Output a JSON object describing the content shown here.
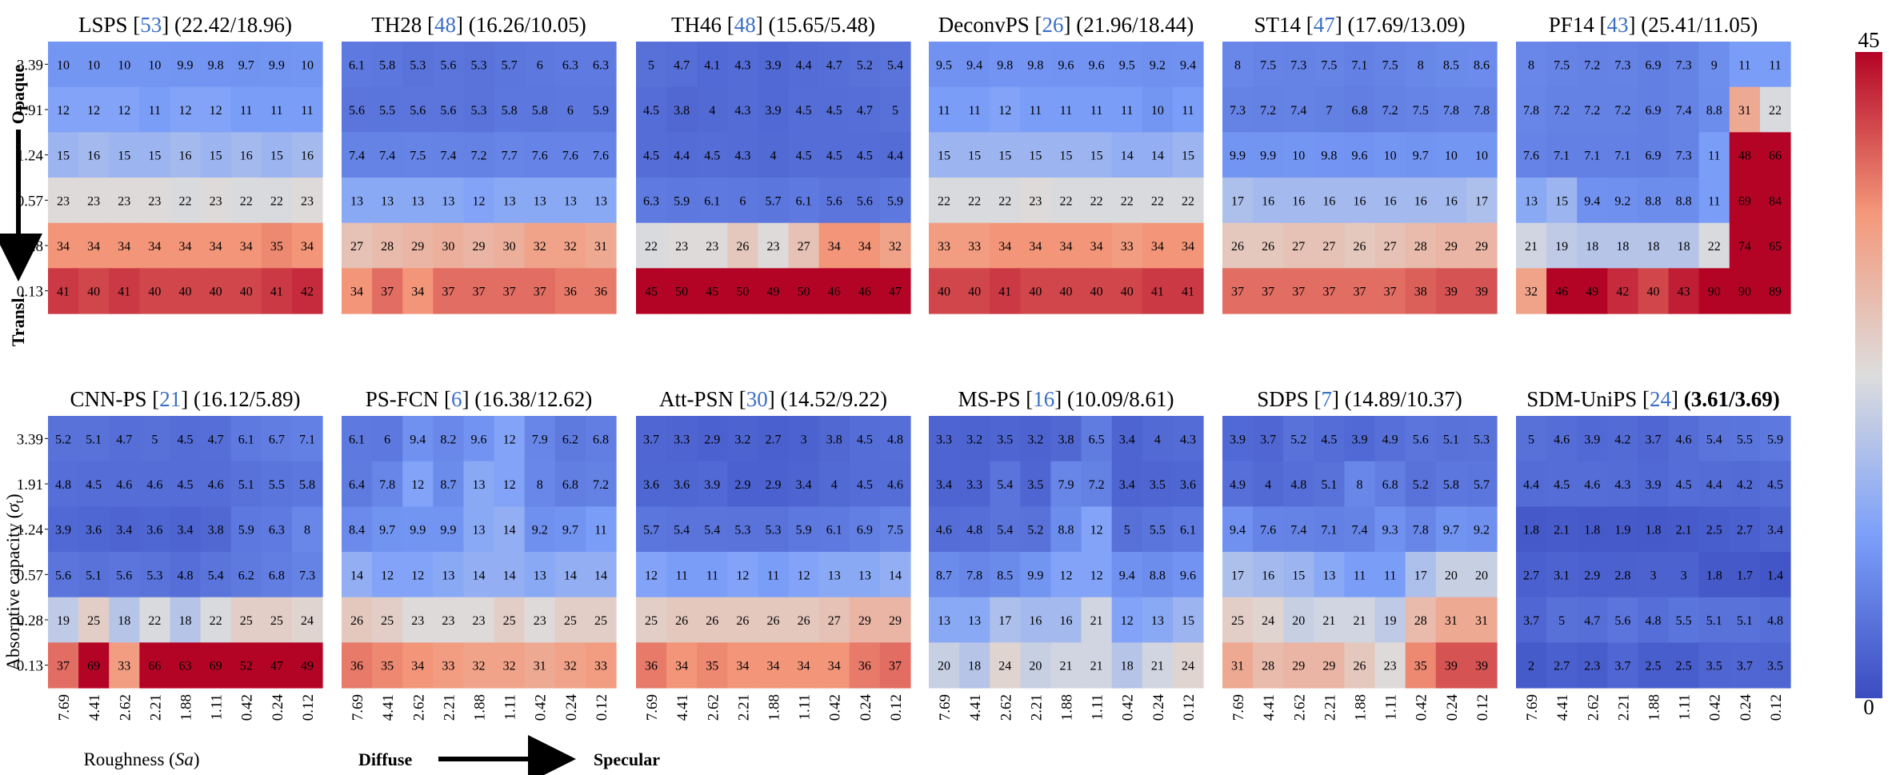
{
  "chart_data": {
    "type": "heatmap",
    "colorbar": {
      "min": 0,
      "max": 45,
      "tick_labels": [
        "45",
        "0"
      ],
      "colormap": "coolwarm"
    },
    "y_ticks": [
      "3.39",
      "1.91",
      "1.24",
      "0.57",
      "0.28",
      "0.13"
    ],
    "x_ticks": [
      "7.69",
      "4.41",
      "2.62",
      "2.21",
      "1.88",
      "1.11",
      "0.42",
      "0.24",
      "0.12"
    ],
    "ylabel_parts": [
      "Absorptive capacity (",
      "σ",
      "t",
      ")"
    ],
    "xlabel_parts": [
      "Roughness (",
      "Sa",
      ")"
    ],
    "side_labels": {
      "top": "Opaque",
      "bottom": "Transl."
    },
    "bottom_labels": {
      "left": "Diffuse",
      "right": "Specular"
    },
    "panels": [
      {
        "name": "LSPS",
        "ref": "53",
        "scores": "(22.42/18.96)",
        "values": [
          [
            10,
            10,
            10,
            10,
            9.9,
            9.8,
            9.7,
            9.9,
            10
          ],
          [
            12,
            12,
            12,
            11,
            12,
            12,
            11,
            11,
            11
          ],
          [
            15,
            16,
            15,
            15,
            16,
            15,
            16,
            15,
            16
          ],
          [
            23,
            23,
            23,
            23,
            22,
            23,
            22,
            22,
            23
          ],
          [
            34,
            34,
            34,
            34,
            34,
            34,
            34,
            35,
            34
          ],
          [
            41,
            40,
            41,
            40,
            40,
            40,
            40,
            41,
            42
          ]
        ]
      },
      {
        "name": "TH28",
        "ref": "48",
        "scores": "(16.26/10.05)",
        "values": [
          [
            6.1,
            5.8,
            5.3,
            5.6,
            5.3,
            5.7,
            6,
            6.3,
            6.3
          ],
          [
            5.6,
            5.5,
            5.6,
            5.6,
            5.3,
            5.8,
            5.8,
            6,
            5.9
          ],
          [
            7.4,
            7.4,
            7.5,
            7.4,
            7.2,
            7.7,
            7.6,
            7.6,
            7.6
          ],
          [
            13,
            13,
            13,
            13,
            12,
            13,
            13,
            13,
            13
          ],
          [
            27,
            28,
            29,
            30,
            29,
            30,
            32,
            32,
            31
          ],
          [
            34,
            37,
            34,
            37,
            37,
            37,
            37,
            36,
            36
          ]
        ]
      },
      {
        "name": "TH46",
        "ref": "48",
        "scores": "(15.65/5.48)",
        "values": [
          [
            5,
            4.7,
            4.1,
            4.3,
            3.9,
            4.4,
            4.7,
            5.2,
            5.4
          ],
          [
            4.5,
            3.8,
            4,
            4.3,
            3.9,
            4.5,
            4.5,
            4.7,
            5
          ],
          [
            4.5,
            4.4,
            4.5,
            4.3,
            4,
            4.5,
            4.5,
            4.5,
            4.4
          ],
          [
            6.3,
            5.9,
            6.1,
            6,
            5.7,
            6.1,
            5.6,
            5.6,
            5.9
          ],
          [
            22,
            23,
            23,
            26,
            23,
            27,
            34,
            34,
            32
          ],
          [
            45,
            50,
            45,
            50,
            49,
            50,
            46,
            46,
            47
          ]
        ]
      },
      {
        "name": "DeconvPS",
        "ref": "26",
        "scores": "(21.96/18.44)",
        "values": [
          [
            9.5,
            9.4,
            9.8,
            9.8,
            9.6,
            9.6,
            9.5,
            9.2,
            9.4
          ],
          [
            11,
            11,
            12,
            11,
            11,
            11,
            11,
            10,
            11
          ],
          [
            15,
            15,
            15,
            15,
            15,
            15,
            14,
            14,
            15
          ],
          [
            22,
            22,
            22,
            23,
            22,
            22,
            22,
            22,
            22
          ],
          [
            33,
            33,
            34,
            34,
            34,
            34,
            33,
            34,
            34
          ],
          [
            40,
            40,
            41,
            40,
            40,
            40,
            40,
            41,
            41
          ]
        ]
      },
      {
        "name": "ST14",
        "ref": "47",
        "scores": "(17.69/13.09)",
        "values": [
          [
            8,
            7.5,
            7.3,
            7.5,
            7.1,
            7.5,
            8,
            8.5,
            8.6
          ],
          [
            7.3,
            7.2,
            7.4,
            7,
            6.8,
            7.2,
            7.5,
            7.8,
            7.8
          ],
          [
            9.9,
            9.9,
            10,
            9.8,
            9.6,
            10,
            9.7,
            10,
            10
          ],
          [
            17,
            16,
            16,
            16,
            16,
            16,
            16,
            16,
            17
          ],
          [
            26,
            26,
            27,
            27,
            26,
            27,
            28,
            29,
            29
          ],
          [
            37,
            37,
            37,
            37,
            37,
            37,
            38,
            39,
            39
          ]
        ]
      },
      {
        "name": "PF14",
        "ref": "43",
        "scores": "(25.41/11.05)",
        "values": [
          [
            8,
            7.5,
            7.2,
            7.3,
            6.9,
            7.3,
            9,
            11,
            11
          ],
          [
            7.8,
            7.2,
            7.2,
            7.2,
            6.9,
            7.4,
            8.8,
            31,
            22
          ],
          [
            7.6,
            7.1,
            7.1,
            7.1,
            6.9,
            7.3,
            11,
            48,
            66
          ],
          [
            13,
            15,
            9.4,
            9.2,
            8.8,
            8.8,
            11,
            69,
            84
          ],
          [
            21,
            19,
            18,
            18,
            18,
            18,
            22,
            74,
            65
          ],
          [
            32,
            46,
            49,
            42,
            40,
            43,
            90,
            90,
            89
          ]
        ]
      },
      {
        "name": "CNN-PS",
        "ref": "21",
        "scores": "(16.12/5.89)",
        "values": [
          [
            5.2,
            5.1,
            4.7,
            5,
            4.5,
            4.7,
            6.1,
            6.7,
            7.1
          ],
          [
            4.8,
            4.5,
            4.6,
            4.6,
            4.5,
            4.6,
            5.1,
            5.5,
            5.8
          ],
          [
            3.9,
            3.6,
            3.4,
            3.6,
            3.4,
            3.8,
            5.9,
            6.3,
            8
          ],
          [
            5.6,
            5.1,
            5.6,
            5.3,
            4.8,
            5.4,
            6.2,
            6.8,
            7.3
          ],
          [
            19,
            25,
            18,
            22,
            18,
            22,
            25,
            25,
            24
          ],
          [
            37,
            69,
            33,
            66,
            63,
            69,
            52,
            47,
            49
          ]
        ]
      },
      {
        "name": "PS-FCN",
        "ref": "6",
        "scores": "(16.38/12.62)",
        "values": [
          [
            6.1,
            6,
            9.4,
            8.2,
            9.6,
            12,
            7.9,
            6.2,
            6.8
          ],
          [
            6.4,
            7.8,
            12,
            8.7,
            13,
            12,
            8,
            6.8,
            7.2
          ],
          [
            8.4,
            9.7,
            9.9,
            9.9,
            13,
            14,
            9.2,
            9.7,
            11
          ],
          [
            14,
            12,
            12,
            13,
            14,
            14,
            13,
            14,
            14
          ],
          [
            26,
            25,
            23,
            23,
            23,
            25,
            23,
            25,
            25
          ],
          [
            36,
            35,
            34,
            33,
            32,
            32,
            31,
            32,
            33
          ]
        ]
      },
      {
        "name": "Att-PSN",
        "ref": "30",
        "scores": "(14.52/9.22)",
        "values": [
          [
            3.7,
            3.3,
            2.9,
            3.2,
            2.7,
            3,
            3.8,
            4.5,
            4.8
          ],
          [
            3.6,
            3.6,
            3.9,
            2.9,
            2.9,
            3.4,
            4,
            4.5,
            4.6
          ],
          [
            5.7,
            5.4,
            5.4,
            5.3,
            5.3,
            5.9,
            6.1,
            6.9,
            7.5
          ],
          [
            12,
            11,
            11,
            12,
            11,
            12,
            13,
            13,
            14
          ],
          [
            25,
            26,
            26,
            26,
            26,
            26,
            27,
            29,
            29
          ],
          [
            36,
            34,
            35,
            34,
            34,
            34,
            34,
            36,
            37
          ]
        ]
      },
      {
        "name": "MS-PS",
        "ref": "16",
        "scores": "(10.09/8.61)",
        "values": [
          [
            3.3,
            3.2,
            3.5,
            3.2,
            3.8,
            6.5,
            3.4,
            4,
            4.3
          ],
          [
            3.4,
            3.3,
            5.4,
            3.5,
            7.9,
            7.2,
            3.4,
            3.5,
            3.6
          ],
          [
            4.6,
            4.8,
            5.4,
            5.2,
            8.8,
            12,
            5,
            5.5,
            6.1
          ],
          [
            8.7,
            7.8,
            8.5,
            9.9,
            12,
            12,
            9.4,
            8.8,
            9.6
          ],
          [
            13,
            13,
            17,
            16,
            16,
            21,
            12,
            13,
            15
          ],
          [
            20,
            18,
            24,
            20,
            21,
            21,
            18,
            21,
            24
          ]
        ]
      },
      {
        "name": "SDPS",
        "ref": "7",
        "scores": "(14.89/10.37)",
        "values": [
          [
            3.9,
            3.7,
            5.2,
            4.5,
            3.9,
            4.9,
            5.6,
            5.1,
            5.3
          ],
          [
            4.9,
            4,
            4.8,
            5.1,
            8,
            6.8,
            5.2,
            5.8,
            5.7
          ],
          [
            9.4,
            7.6,
            7.4,
            7.1,
            7.4,
            9.3,
            7.8,
            9.7,
            9.2
          ],
          [
            17,
            16,
            15,
            13,
            11,
            11,
            17,
            20,
            20
          ],
          [
            25,
            24,
            20,
            21,
            21,
            19,
            28,
            31,
            31
          ],
          [
            31,
            28,
            29,
            29,
            26,
            23,
            35,
            39,
            39
          ]
        ]
      },
      {
        "name": "SDM-UniPS",
        "ref": "24",
        "scores": "(3.61/3.69)",
        "values": [
          [
            5,
            4.6,
            3.9,
            4.2,
            3.7,
            4.6,
            5.4,
            5.5,
            5.9
          ],
          [
            4.4,
            4.5,
            4.6,
            4.3,
            3.9,
            4.5,
            4.4,
            4.2,
            4.5
          ],
          [
            1.8,
            2.1,
            1.8,
            1.9,
            1.8,
            2.1,
            2.5,
            2.7,
            3.4
          ],
          [
            2.7,
            3.1,
            2.9,
            2.8,
            3,
            3,
            1.8,
            1.7,
            1.4
          ],
          [
            3.7,
            5,
            4.7,
            5.6,
            4.8,
            5.5,
            5.1,
            5.1,
            4.8
          ],
          [
            2,
            2.7,
            2.3,
            3.7,
            2.5,
            2.5,
            3.5,
            3.7,
            3.5
          ]
        ]
      }
    ]
  }
}
